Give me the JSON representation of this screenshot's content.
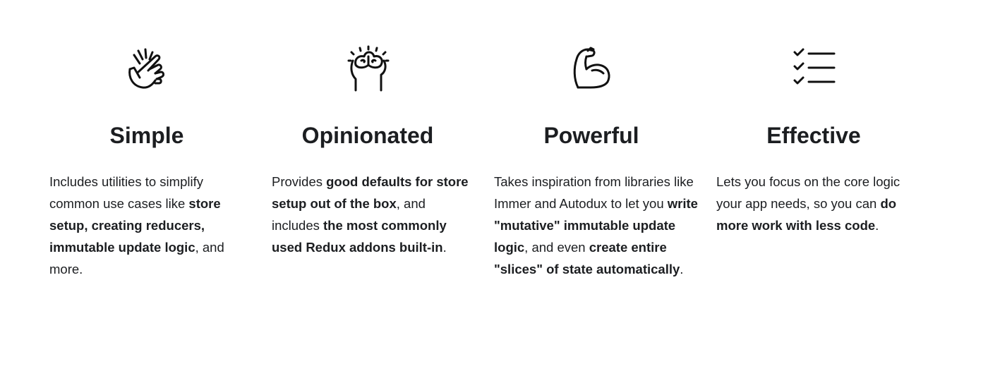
{
  "features": [
    {
      "icon": "snap-fingers-icon",
      "title": "Simple",
      "parts": [
        {
          "text": "Includes utilities to simplify common use cases like ",
          "bold": false
        },
        {
          "text": "store setup, creating reducers, immutable update logic",
          "bold": true
        },
        {
          "text": ", and more.",
          "bold": false
        }
      ]
    },
    {
      "icon": "brain-head-icon",
      "title": "Opinionated",
      "parts": [
        {
          "text": "Provides ",
          "bold": false
        },
        {
          "text": "good defaults for store setup out of the box",
          "bold": true
        },
        {
          "text": ", and includes ",
          "bold": false
        },
        {
          "text": "the most commonly used Redux addons built-in",
          "bold": true
        },
        {
          "text": ".",
          "bold": false
        }
      ]
    },
    {
      "icon": "flexed-bicep-icon",
      "title": "Powerful",
      "parts": [
        {
          "text": "Takes inspiration from libraries like Immer and Autodux to let you ",
          "bold": false
        },
        {
          "text": "write \"mutative\" immutable update logic",
          "bold": true
        },
        {
          "text": ", and even ",
          "bold": false
        },
        {
          "text": "create entire \"slices\" of state automatically",
          "bold": true
        },
        {
          "text": ".",
          "bold": false
        }
      ]
    },
    {
      "icon": "checklist-icon",
      "title": "Effective",
      "parts": [
        {
          "text": "Lets you focus on the core logic your app needs, so you can ",
          "bold": false
        },
        {
          "text": "do more work with less code",
          "bold": true
        },
        {
          "text": ".",
          "bold": false
        }
      ]
    }
  ]
}
